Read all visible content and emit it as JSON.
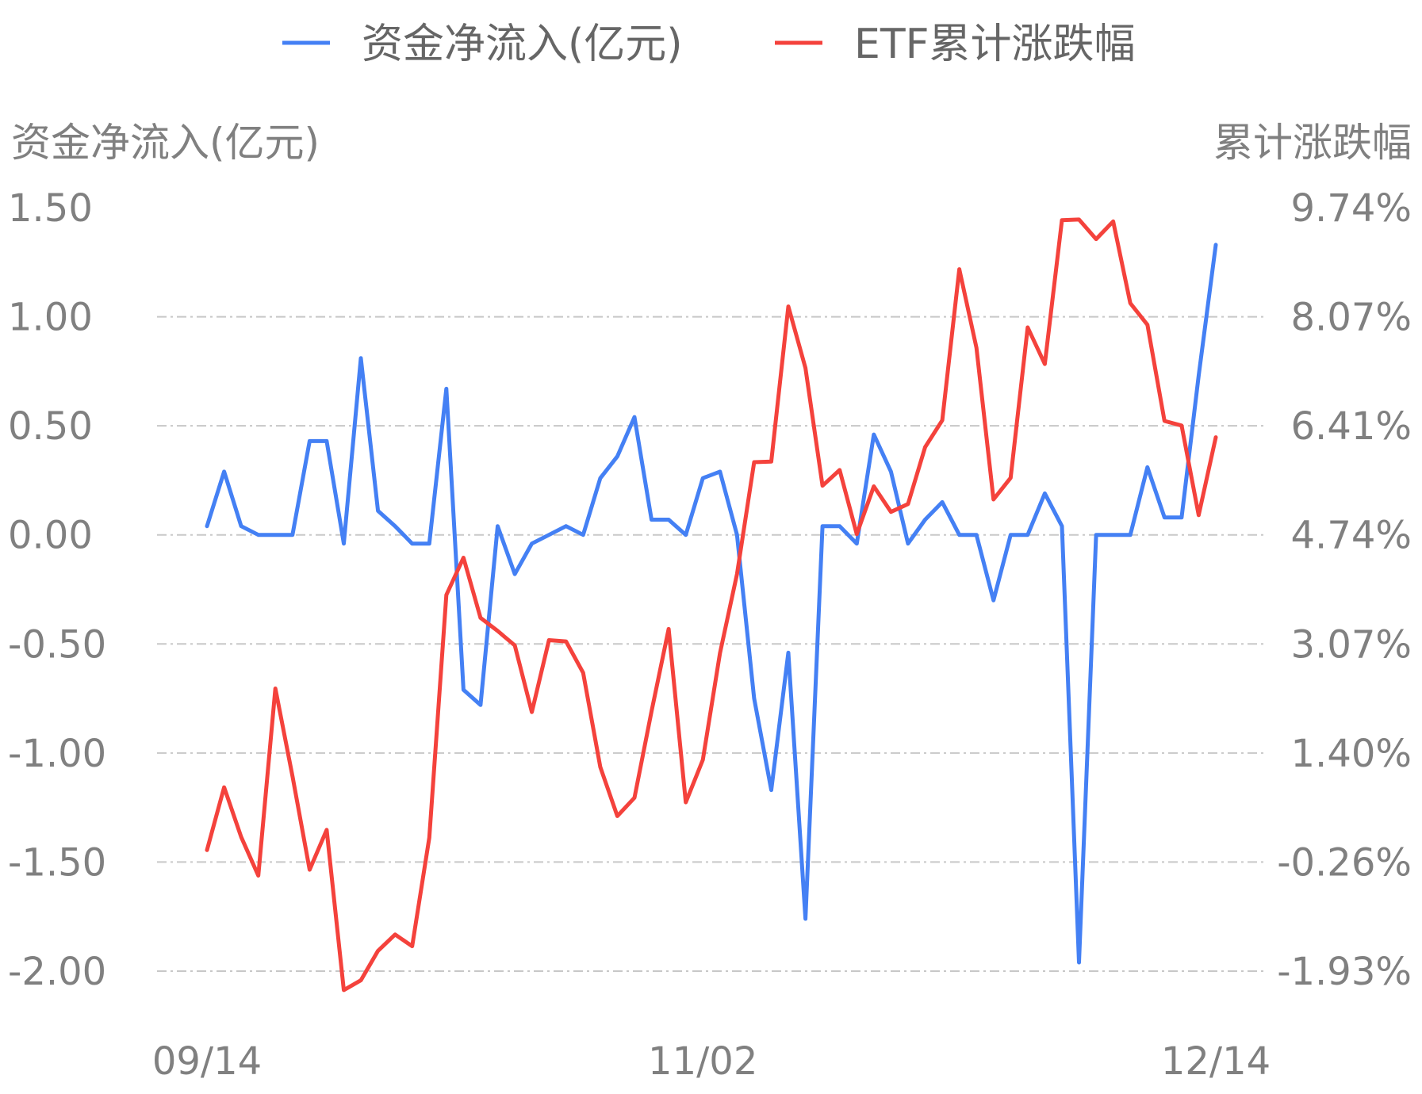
{
  "chart_data": {
    "type": "line",
    "legend": {
      "position": "top-center",
      "items": [
        {
          "label": "资金净流入(亿元)",
          "color": "#4480f4"
        },
        {
          "label": "ETF累计涨跌幅",
          "color": "#f4423c"
        }
      ]
    },
    "y_left": {
      "label": "资金净流入(亿元)",
      "ticks": [
        "1.50",
        "1.00",
        "0.50",
        "0.00",
        "-0.50",
        "-1.00",
        "-1.50",
        "-2.00"
      ],
      "range": [
        -2.0,
        1.5
      ]
    },
    "y_right": {
      "label": "累计涨跌幅",
      "ticks": [
        "9.74%",
        "8.07%",
        "6.41%",
        "4.74%",
        "3.07%",
        "1.40%",
        "-0.26%",
        "-1.93%"
      ],
      "range": [
        -1.93,
        9.74
      ]
    },
    "x_ticks": [
      {
        "label": "09/14",
        "index": 0
      },
      {
        "label": "11/02",
        "index": 29
      },
      {
        "label": "12/14",
        "index": 59
      }
    ],
    "grid": true,
    "series": [
      {
        "name": "资金净流入(亿元)",
        "axis": "left",
        "color": "#4480f4",
        "values": [
          0.04,
          0.29,
          0.04,
          0.0,
          0.0,
          0.0,
          0.43,
          0.43,
          -0.04,
          0.81,
          0.11,
          0.04,
          -0.04,
          -0.04,
          0.67,
          -0.71,
          -0.78,
          0.04,
          -0.18,
          -0.04,
          0.0,
          0.04,
          0.0,
          0.26,
          0.36,
          0.54,
          0.07,
          0.07,
          0.0,
          0.26,
          0.29,
          0.0,
          -0.75,
          -1.17,
          -0.54,
          -1.76,
          0.04,
          0.04,
          -0.04,
          0.46,
          0.29,
          -0.04,
          0.07,
          0.15,
          0.0,
          0.0,
          -0.3,
          0.0,
          0.0,
          0.19,
          0.04,
          -1.96,
          0.0,
          0.0,
          0.0,
          0.31,
          0.08,
          0.08,
          0.73,
          1.33
        ]
      },
      {
        "name": "ETF累计涨跌幅",
        "axis": "right",
        "color": "#f4423c",
        "values": [
          -0.08,
          0.88,
          0.12,
          -0.47,
          2.39,
          1.05,
          -0.38,
          0.23,
          -2.22,
          -2.07,
          -1.62,
          -1.37,
          -1.55,
          0.11,
          3.82,
          4.39,
          3.47,
          3.27,
          3.05,
          2.03,
          3.13,
          3.11,
          2.63,
          1.19,
          0.44,
          0.72,
          2.04,
          3.3,
          0.65,
          1.3,
          2.93,
          4.14,
          5.85,
          5.86,
          8.23,
          7.29,
          5.49,
          5.73,
          4.75,
          5.48,
          5.09,
          5.21,
          6.08,
          6.49,
          8.8,
          7.6,
          5.28,
          5.61,
          7.91,
          7.35,
          9.55,
          9.56,
          9.26,
          9.53,
          8.28,
          7.95,
          6.48,
          6.41,
          5.04,
          6.23
        ]
      }
    ]
  }
}
